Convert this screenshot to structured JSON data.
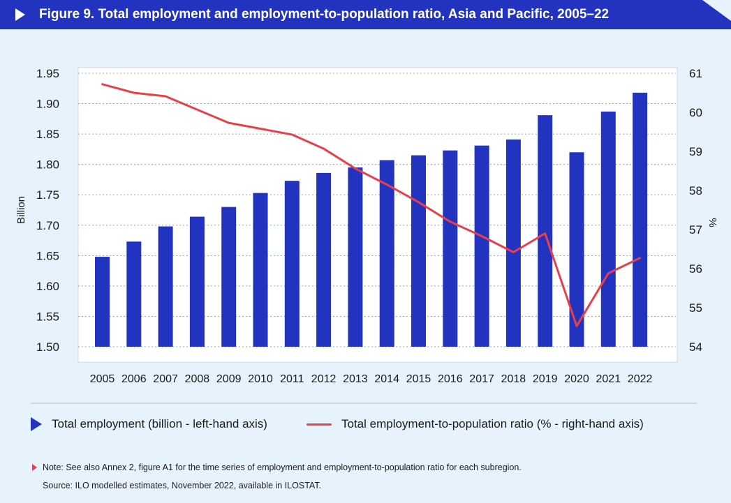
{
  "title": "Figure 9. Total employment and employment-to-population ratio, Asia and Pacific, 2005–22",
  "colors": {
    "header": "#2233c0",
    "bar": "#2233c0",
    "line": "#e8404a",
    "background": "#e6f2fc",
    "plot_bg": "#ffffff"
  },
  "legend": {
    "bar_label": "Total employment (billion - left-hand axis)",
    "line_label": "Total employment-to-population ratio (% - right-hand axis)"
  },
  "notes": {
    "note": "Note: See also Annex 2, figure A1 for the time series of employment and employment-to-population ratio for each subregion.",
    "source": "Source: ILO modelled estimates, November 2022, available in ILOSTAT."
  },
  "chart_data": {
    "type": "bar+line",
    "title": "Total employment and employment-to-population ratio, Asia and Pacific, 2005–22",
    "categories": [
      "2005",
      "2006",
      "2007",
      "2008",
      "2009",
      "2010",
      "2011",
      "2012",
      "2013",
      "2014",
      "2015",
      "2016",
      "2017",
      "2018",
      "2019",
      "2020",
      "2021",
      "2022"
    ],
    "series": [
      {
        "name": "Total employment (billion - left-hand axis)",
        "type": "bar",
        "axis": "left",
        "values": [
          1.648,
          1.673,
          1.698,
          1.714,
          1.73,
          1.753,
          1.773,
          1.786,
          1.795,
          1.807,
          1.815,
          1.823,
          1.831,
          1.841,
          1.881,
          1.82,
          1.887,
          1.918
        ]
      },
      {
        "name": "Total employment-to-population ratio (% - right-hand axis)",
        "type": "line",
        "axis": "right",
        "values": [
          60.72,
          60.5,
          60.41,
          60.07,
          59.73,
          59.58,
          59.43,
          59.07,
          58.56,
          58.15,
          57.7,
          57.2,
          56.83,
          56.42,
          56.9,
          54.53,
          55.88,
          56.27
        ]
      }
    ],
    "left_axis": {
      "label": "Billion",
      "min": 1.5,
      "max": 1.95,
      "ticks": [
        "1.50",
        "1.55",
        "1.60",
        "1.65",
        "1.70",
        "1.75",
        "1.80",
        "1.85",
        "1.90",
        "1.95"
      ]
    },
    "right_axis": {
      "label": "%",
      "min": 54,
      "max": 61,
      "ticks": [
        "54",
        "55",
        "56",
        "57",
        "58",
        "59",
        "60",
        "61"
      ]
    },
    "grid": true
  }
}
